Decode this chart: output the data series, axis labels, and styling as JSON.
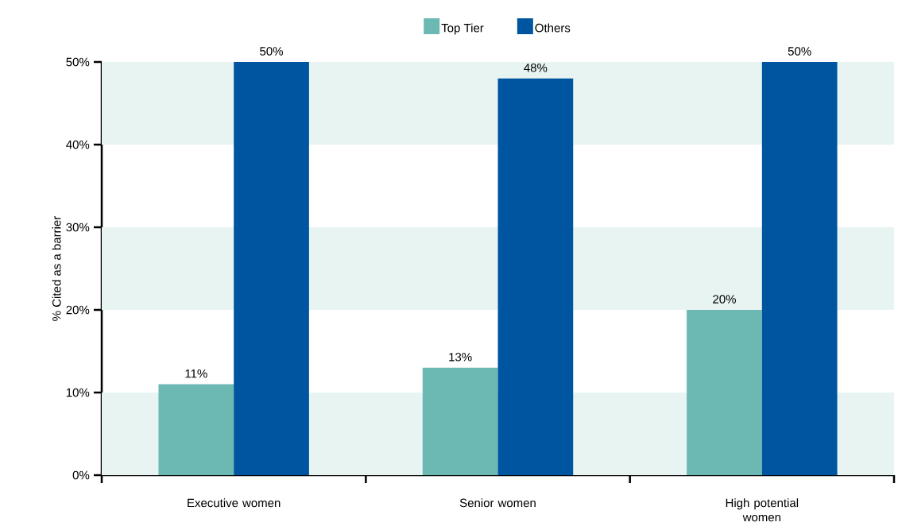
{
  "chart_data": {
    "type": "bar",
    "ylabel": "% Cited as a barrier",
    "categories": [
      "Executive women",
      "Senior women",
      "High potential women"
    ],
    "series": [
      {
        "name": "Top Tier",
        "color": "#6cb9b3",
        "values": [
          11,
          13,
          20
        ],
        "value_labels": [
          "11%",
          "13%",
          "20%"
        ]
      },
      {
        "name": "Others",
        "color": "#0055a0",
        "values": [
          50,
          48,
          50
        ],
        "value_labels": [
          "50%",
          "48%",
          "50%"
        ]
      }
    ],
    "ylim": [
      0,
      50
    ],
    "yticks": [
      {
        "value": 0,
        "label": "0%"
      },
      {
        "value": 10,
        "label": "10%"
      },
      {
        "value": 20,
        "label": "20%"
      },
      {
        "value": 30,
        "label": "30%"
      },
      {
        "value": 40,
        "label": "40%"
      },
      {
        "value": 50,
        "label": "50%"
      }
    ],
    "bands": [
      {
        "axis": "y",
        "from": 0,
        "to": 10,
        "color": "#e8f4f2"
      },
      {
        "axis": "y",
        "from": 20,
        "to": 30,
        "color": "#e8f4f2"
      },
      {
        "axis": "y",
        "from": 40,
        "to": 50,
        "color": "#e8f4f2"
      }
    ],
    "grid": false,
    "legend": "top"
  }
}
